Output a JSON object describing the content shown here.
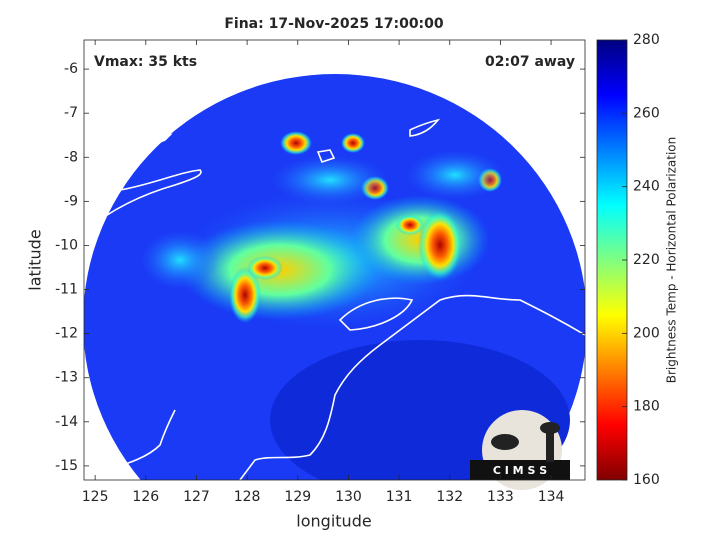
{
  "chart_data": {
    "type": "image",
    "title": "Fina: 17-Nov-2025 17:00:00",
    "xlabel": "longitude",
    "ylabel": "latitude",
    "xlim": [
      124.78,
      134.67
    ],
    "xticks": [
      125,
      126,
      127,
      128,
      129,
      130,
      131,
      132,
      133,
      134
    ],
    "ylim": [
      -15.32,
      -5.34
    ],
    "yticks": [
      -6,
      -7,
      -8,
      -9,
      -10,
      -11,
      -12,
      -13,
      -14,
      -15
    ],
    "annotations": {
      "vmax": "Vmax: 35 kts",
      "time_away": "02:07 away",
      "logo": "C I M S S"
    },
    "colorbar": {
      "label": "Brightness Temp - Horizontal Polarization",
      "clim": [
        160,
        280
      ],
      "ticks": [
        160,
        180,
        200,
        220,
        240,
        260,
        280
      ],
      "colormap": "jet"
    }
  }
}
